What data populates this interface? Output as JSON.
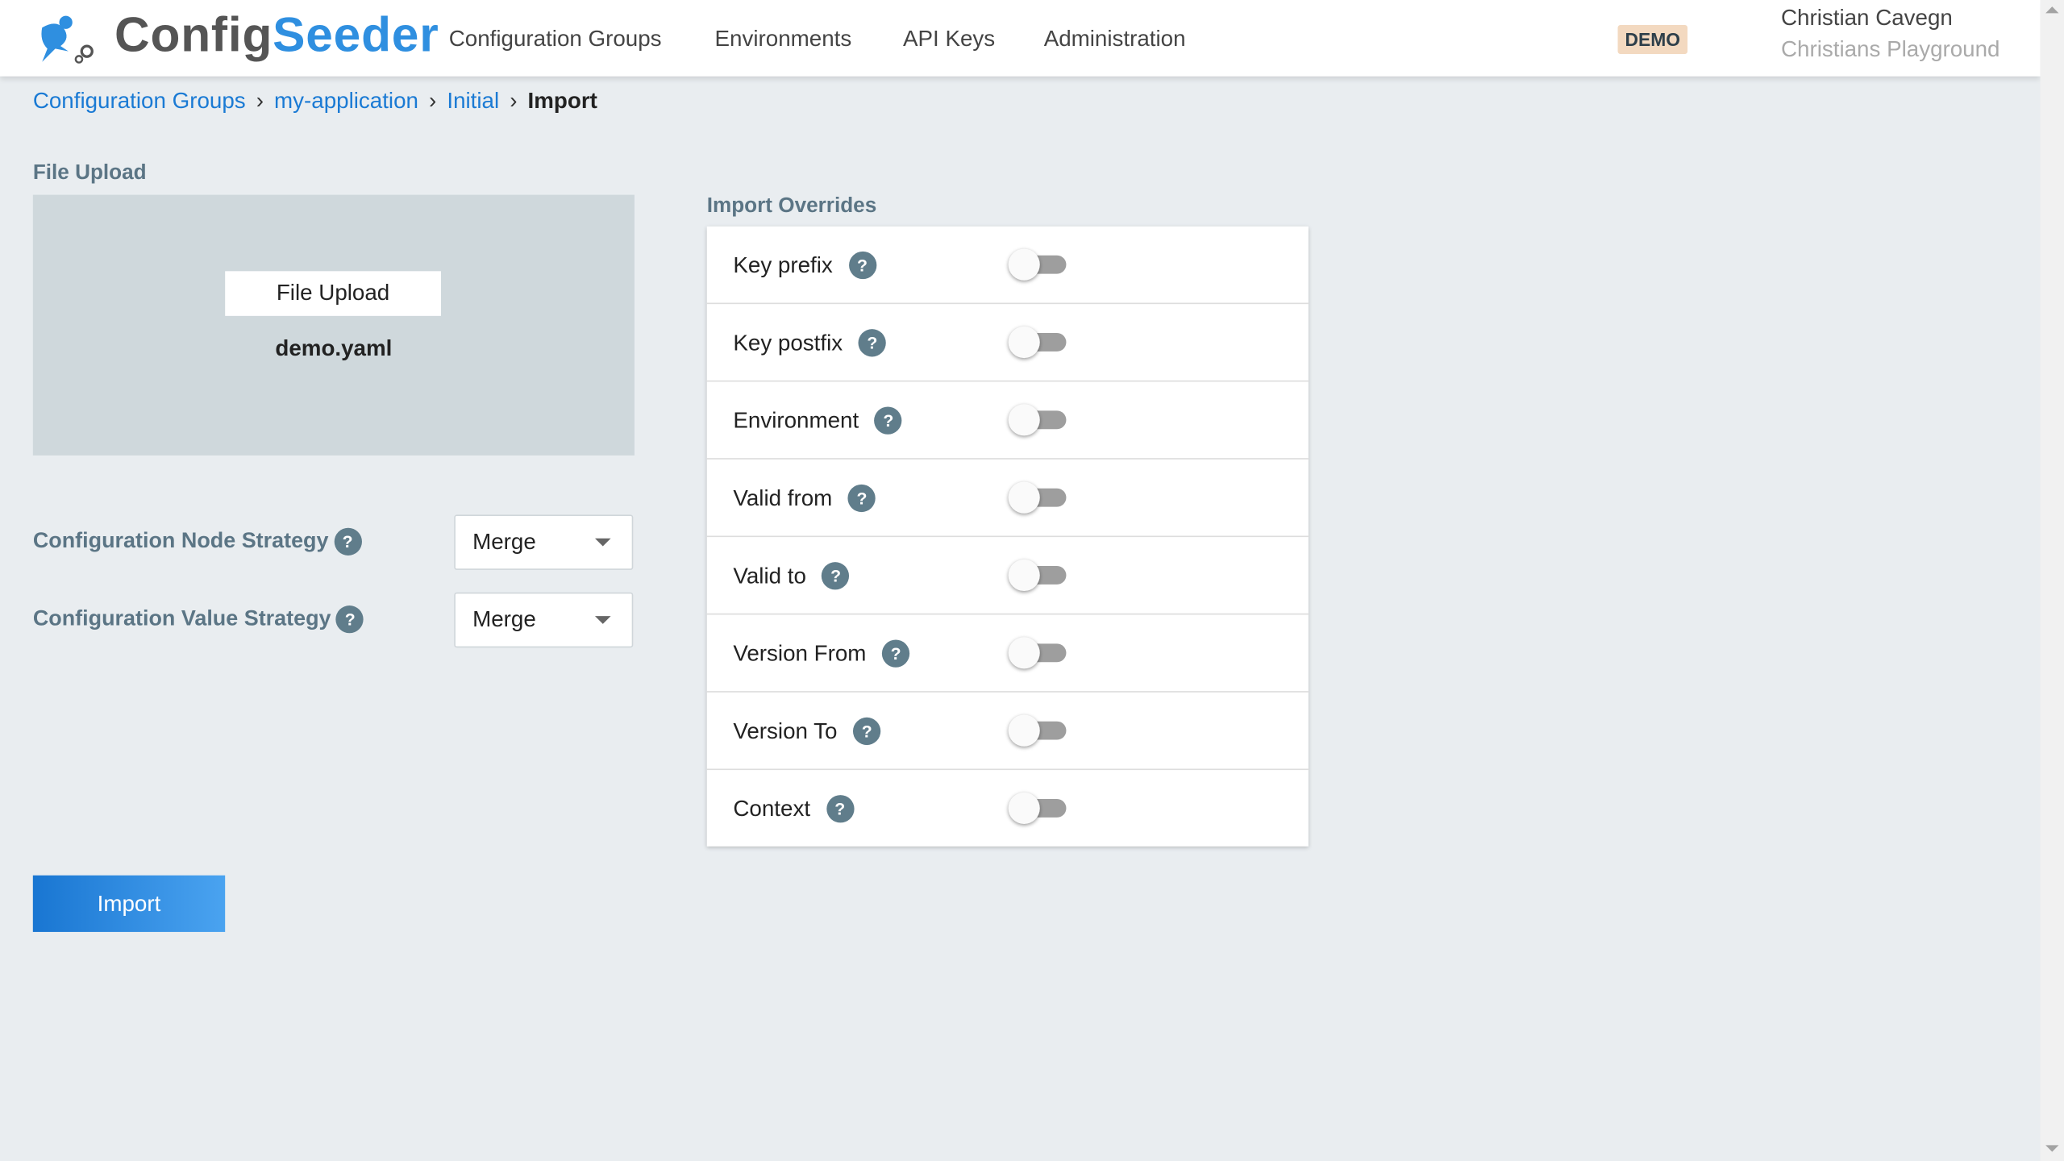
{
  "header": {
    "logo": {
      "part1": "Config",
      "part2": "Seeder"
    },
    "nav": [
      "Configuration Groups",
      "Environments",
      "API Keys",
      "Administration"
    ],
    "badge": "DEMO",
    "user_name": "Christian Cavegn",
    "user_workspace": "Christians Playground"
  },
  "breadcrumb": [
    "Configuration Groups",
    "my-application",
    "Initial",
    "Import"
  ],
  "upload": {
    "title": "File Upload",
    "button": "File Upload",
    "filename": "demo.yaml"
  },
  "strategies": [
    {
      "label": "Configuration Node Strategy",
      "value": "Merge"
    },
    {
      "label": "Configuration Value Strategy",
      "value": "Merge"
    }
  ],
  "import_button": "Import",
  "overrides": {
    "title": "Import Overrides",
    "help_glyph": "?",
    "items": [
      {
        "label": "Key prefix",
        "enabled": false
      },
      {
        "label": "Key postfix",
        "enabled": false
      },
      {
        "label": "Environment",
        "enabled": false
      },
      {
        "label": "Valid from",
        "enabled": false
      },
      {
        "label": "Valid to",
        "enabled": false
      },
      {
        "label": "Version From",
        "enabled": false
      },
      {
        "label": "Version To",
        "enabled": false
      },
      {
        "label": "Context",
        "enabled": false
      }
    ]
  },
  "colors": {
    "accent": "#1976d2",
    "brand_blue": "#2f8fe0",
    "help": "#607d8b",
    "badge": "#f3d9c0"
  }
}
